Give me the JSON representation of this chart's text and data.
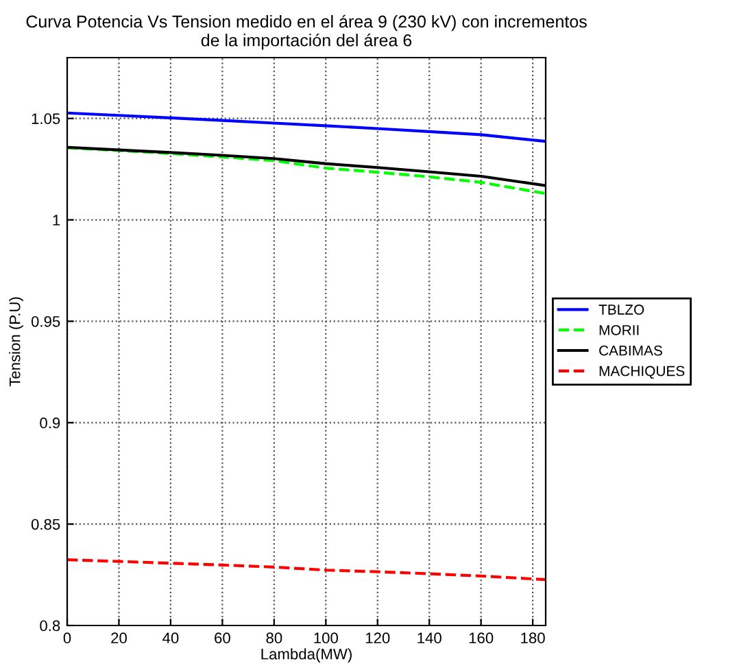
{
  "chart_data": {
    "type": "line",
    "title": "Curva Potencia Vs Tension medido en el área 9 (230 kV) con incrementos\nde la importación del área 6",
    "xlabel": "Lambda(MW)",
    "ylabel": "Tension (P.U)",
    "x": [
      0,
      20,
      40,
      60,
      80,
      100,
      120,
      140,
      160,
      185
    ],
    "series": [
      {
        "name": "TBLZO",
        "color": "#0000ff",
        "line_style": "solid",
        "values": [
          1.0527,
          1.0515,
          1.0503,
          1.049,
          1.0477,
          1.0464,
          1.045,
          1.0435,
          1.042,
          1.0387
        ]
      },
      {
        "name": "MORII",
        "color": "#00ff00",
        "line_style": "dashed",
        "values": [
          1.0355,
          1.0342,
          1.0327,
          1.031,
          1.0292,
          1.0255,
          1.0235,
          1.0212,
          1.0185,
          1.013
        ]
      },
      {
        "name": "CABIMAS",
        "color": "#000000",
        "line_style": "solid",
        "values": [
          1.0358,
          1.0345,
          1.0332,
          1.0318,
          1.0302,
          1.0277,
          1.0258,
          1.0237,
          1.0215,
          1.0169
        ]
      },
      {
        "name": "MACHIQUES",
        "color": "#ff0000",
        "line_style": "dashed",
        "values": [
          0.8324,
          0.8316,
          0.8307,
          0.8298,
          0.8288,
          0.8273,
          0.8265,
          0.8255,
          0.8244,
          0.8226
        ]
      }
    ],
    "xlim": [
      0,
      185
    ],
    "ylim": [
      0.8,
      1.08
    ],
    "xticks": [
      0,
      20,
      40,
      60,
      80,
      100,
      120,
      140,
      160,
      180
    ],
    "yticks": [
      0.8,
      0.85,
      0.9,
      0.95,
      1,
      1.05
    ],
    "grid": true,
    "legend": "right",
    "marker": "none"
  }
}
